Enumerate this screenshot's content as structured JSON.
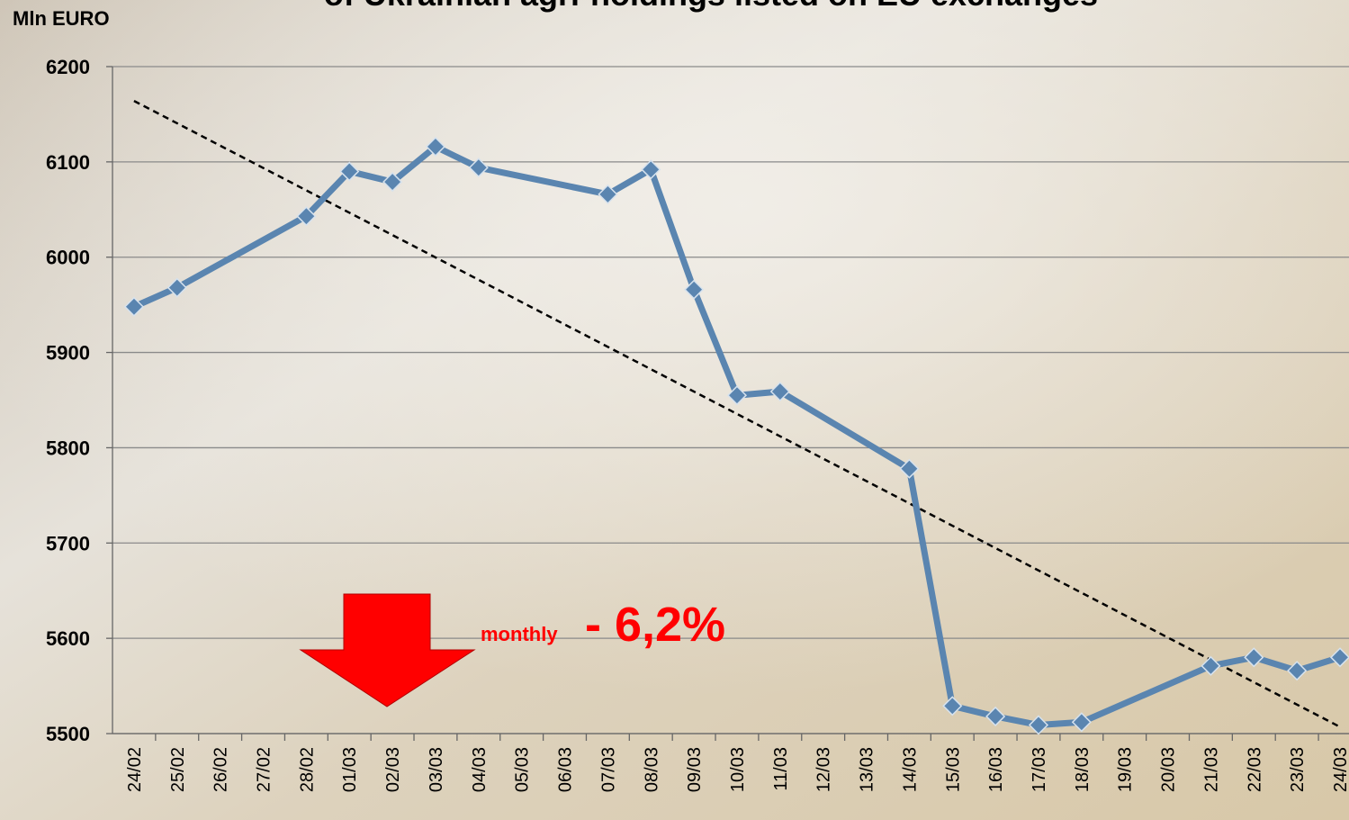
{
  "chart_data": {
    "type": "line",
    "title": "of Ukrainian agri-holdings listed on EU exchanges",
    "y_label": "Mln EURO",
    "categories": [
      "24/02",
      "25/02",
      "26/02",
      "27/02",
      "28/02",
      "01/03",
      "02/03",
      "03/03",
      "04/03",
      "05/03",
      "06/03",
      "07/03",
      "08/03",
      "09/03",
      "10/03",
      "11/03",
      "12/03",
      "13/03",
      "14/03",
      "15/03",
      "16/03",
      "17/03",
      "18/03",
      "19/03",
      "20/03",
      "21/03",
      "22/03",
      "23/03",
      "24/03"
    ],
    "series": [
      {
        "color": "#5a85b0",
        "x": [
          "24/02",
          "25/02",
          "28/02",
          "01/03",
          "02/03",
          "03/03",
          "04/03",
          "07/03",
          "08/03",
          "09/03",
          "10/03",
          "11/03",
          "14/03",
          "15/03",
          "16/03",
          "17/03",
          "18/03",
          "21/03",
          "22/03",
          "23/03",
          "24/03"
        ],
        "values": [
          5948,
          5968,
          6043,
          6090,
          6079,
          6116,
          6094,
          6066,
          6092,
          5966,
          5855,
          5859,
          5778,
          5529,
          5518,
          5509,
          5512,
          5571,
          5580,
          5566,
          5580
        ]
      }
    ],
    "trend_values": [
      6164,
      5507
    ],
    "ylim": [
      5500,
      6200
    ],
    "yticks": [
      5500,
      5600,
      5700,
      5800,
      5900,
      6000,
      6100,
      6200
    ],
    "grid": true,
    "annotation_small": "monthly",
    "annotation_big": "- 6,2%"
  }
}
